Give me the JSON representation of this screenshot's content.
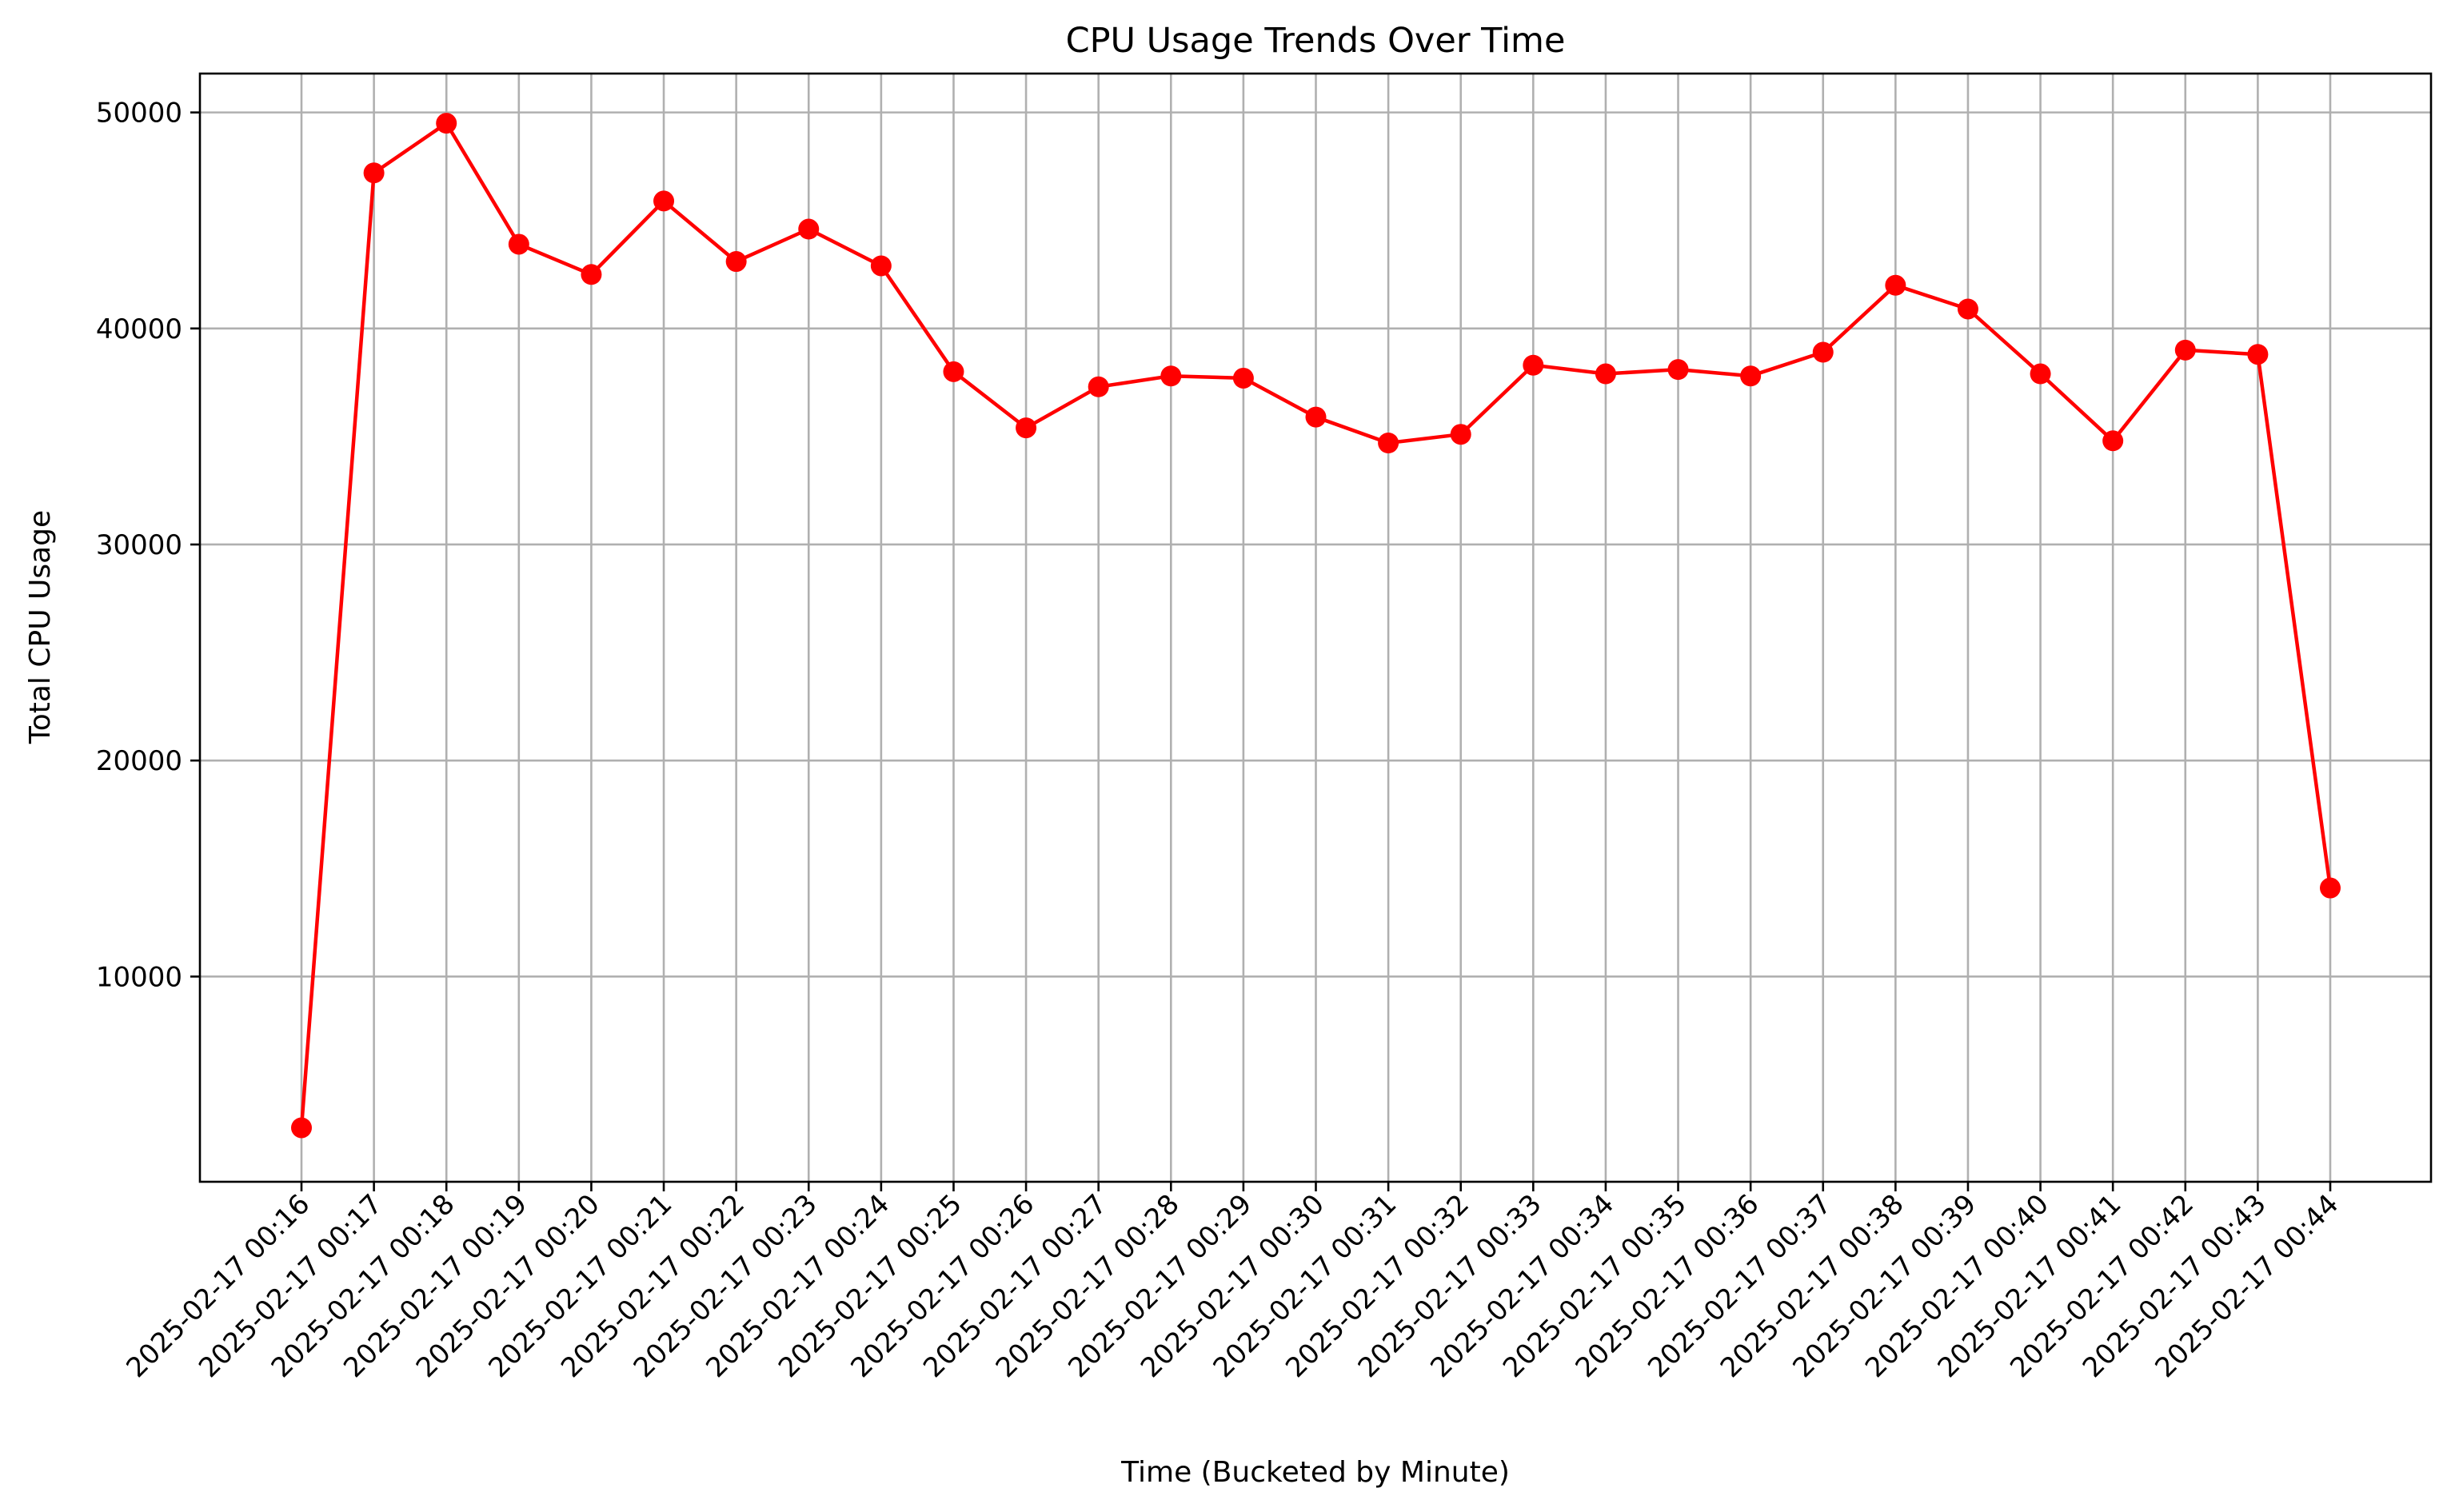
{
  "chart_data": {
    "type": "line",
    "title": "CPU Usage Trends Over Time",
    "xlabel": "Time (Bucketed by Minute)",
    "ylabel": "Total CPU Usage",
    "categories": [
      "2025-02-17 00:16",
      "2025-02-17 00:17",
      "2025-02-17 00:18",
      "2025-02-17 00:19",
      "2025-02-17 00:20",
      "2025-02-17 00:21",
      "2025-02-17 00:22",
      "2025-02-17 00:23",
      "2025-02-17 00:24",
      "2025-02-17 00:25",
      "2025-02-17 00:26",
      "2025-02-17 00:27",
      "2025-02-17 00:28",
      "2025-02-17 00:29",
      "2025-02-17 00:30",
      "2025-02-17 00:31",
      "2025-02-17 00:32",
      "2025-02-17 00:33",
      "2025-02-17 00:34",
      "2025-02-17 00:35",
      "2025-02-17 00:36",
      "2025-02-17 00:37",
      "2025-02-17 00:38",
      "2025-02-17 00:39",
      "2025-02-17 00:40",
      "2025-02-17 00:41",
      "2025-02-17 00:42",
      "2025-02-17 00:43",
      "2025-02-17 00:44"
    ],
    "values": [
      3000,
      47200,
      49500,
      43900,
      42500,
      45900,
      43100,
      44600,
      42900,
      38000,
      35400,
      37300,
      37800,
      37700,
      35900,
      34700,
      35100,
      38300,
      37900,
      38100,
      37800,
      38900,
      42000,
      40900,
      37900,
      34800,
      39000,
      38800,
      14100
    ],
    "ylim": [
      500,
      51800
    ],
    "yticks": [
      10000,
      20000,
      30000,
      40000,
      50000
    ],
    "grid": true,
    "legend": "none",
    "line_color": "#ff0000",
    "marker": "circle"
  }
}
